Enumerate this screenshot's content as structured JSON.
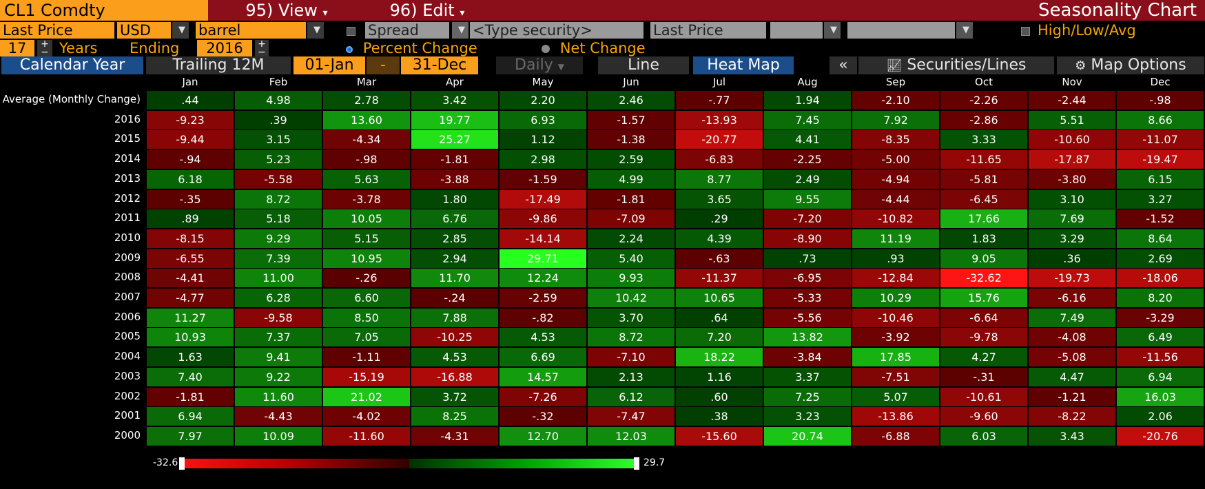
{
  "header": {
    "ticker": "CL1 Comdty",
    "view_menu": "95) View",
    "edit_menu": "96) Edit",
    "title": "Seasonality Chart"
  },
  "controls": {
    "field": "Last Price",
    "currency": "USD",
    "unit": "barrel",
    "spread_label": "Spread",
    "security_placeholder": "<Type security>",
    "second_field": "Last Price",
    "high_low_avg": "High/Low/Avg",
    "years_value": "17",
    "years_label": "Years",
    "ending_label": "Ending",
    "ending_year": "2016",
    "percent_change": "Percent Change",
    "net_change": "Net Change",
    "percent_change_selected": true
  },
  "toolbar": {
    "calendar_year": "Calendar Year",
    "trailing": "Trailing 12M",
    "start_date": "01-Jan",
    "dash": "-",
    "end_date": "31-Dec",
    "daily": "Daily",
    "line": "Line",
    "heat_map": "Heat Map",
    "collapse": "«",
    "securities_lines": "Securities/Lines",
    "map_options": "Map Options"
  },
  "heatmap": {
    "months": [
      "Jan",
      "Feb",
      "Mar",
      "Apr",
      "May",
      "Jun",
      "Jul",
      "Aug",
      "Sep",
      "Oct",
      "Nov",
      "Dec"
    ],
    "rows": [
      {
        "label": "Average (Monthly Change)",
        "values": [
          ".44",
          "4.98",
          "2.78",
          "3.42",
          "2.20",
          "2.46",
          "-.77",
          "1.94",
          "-2.10",
          "-2.26",
          "-2.44",
          "-.98"
        ]
      },
      {
        "label": "2016",
        "values": [
          "-9.23",
          ".39",
          "13.60",
          "19.77",
          "6.93",
          "-1.57",
          "-13.93",
          "7.45",
          "7.92",
          "-2.86",
          "5.51",
          "8.66"
        ]
      },
      {
        "label": "2015",
        "values": [
          "-9.44",
          "3.15",
          "-4.34",
          "25.27",
          "1.12",
          "-1.38",
          "-20.77",
          "4.41",
          "-8.35",
          "3.33",
          "-10.60",
          "-11.07"
        ]
      },
      {
        "label": "2014",
        "values": [
          "-.94",
          "5.23",
          "-.98",
          "-1.81",
          "2.98",
          "2.59",
          "-6.83",
          "-2.25",
          "-5.00",
          "-11.65",
          "-17.87",
          "-19.47"
        ]
      },
      {
        "label": "2013",
        "values": [
          "6.18",
          "-5.58",
          "5.63",
          "-3.88",
          "-1.59",
          "4.99",
          "8.77",
          "2.49",
          "-4.94",
          "-5.81",
          "-3.80",
          "6.15"
        ]
      },
      {
        "label": "2012",
        "values": [
          "-.35",
          "8.72",
          "-3.78",
          "1.80",
          "-17.49",
          "-1.81",
          "3.65",
          "9.55",
          "-4.44",
          "-6.45",
          "3.10",
          "3.27"
        ]
      },
      {
        "label": "2011",
        "values": [
          ".89",
          "5.18",
          "10.05",
          "6.76",
          "-9.86",
          "-7.09",
          ".29",
          "-7.20",
          "-10.82",
          "17.66",
          "7.69",
          "-1.52"
        ]
      },
      {
        "label": "2010",
        "values": [
          "-8.15",
          "9.29",
          "5.15",
          "2.85",
          "-14.14",
          "2.24",
          "4.39",
          "-8.90",
          "11.19",
          "1.83",
          "3.29",
          "8.64"
        ]
      },
      {
        "label": "2009",
        "values": [
          "-6.55",
          "7.39",
          "10.95",
          "2.94",
          "29.71",
          "5.40",
          "-.63",
          ".73",
          ".93",
          "9.05",
          ".36",
          "2.69"
        ]
      },
      {
        "label": "2008",
        "values": [
          "-4.41",
          "11.00",
          "-.26",
          "11.70",
          "12.24",
          "9.93",
          "-11.37",
          "-6.95",
          "-12.84",
          "-32.62",
          "-19.73",
          "-18.06"
        ]
      },
      {
        "label": "2007",
        "values": [
          "-4.77",
          "6.28",
          "6.60",
          "-.24",
          "-2.59",
          "10.42",
          "10.65",
          "-5.33",
          "10.29",
          "15.76",
          "-6.16",
          "8.20"
        ]
      },
      {
        "label": "2006",
        "values": [
          "11.27",
          "-9.58",
          "8.50",
          "7.88",
          "-.82",
          "3.70",
          ".64",
          "-5.56",
          "-10.46",
          "-6.64",
          "7.49",
          "-3.29"
        ]
      },
      {
        "label": "2005",
        "values": [
          "10.93",
          "7.37",
          "7.05",
          "-10.25",
          "4.53",
          "8.72",
          "7.20",
          "13.82",
          "-3.92",
          "-9.78",
          "-4.08",
          "6.49"
        ]
      },
      {
        "label": "2004",
        "values": [
          "1.63",
          "9.41",
          "-1.11",
          "4.53",
          "6.69",
          "-7.10",
          "18.22",
          "-3.84",
          "17.85",
          "4.27",
          "-5.08",
          "-11.56"
        ]
      },
      {
        "label": "2003",
        "values": [
          "7.40",
          "9.22",
          "-15.19",
          "-16.88",
          "14.57",
          "2.13",
          "1.16",
          "3.37",
          "-7.51",
          "-.31",
          "4.47",
          "6.94"
        ]
      },
      {
        "label": "2002",
        "values": [
          "-1.81",
          "11.60",
          "21.02",
          "3.72",
          "-7.26",
          "6.12",
          ".60",
          "7.25",
          "5.07",
          "-10.61",
          "-1.21",
          "16.03"
        ]
      },
      {
        "label": "2001",
        "values": [
          "6.94",
          "-4.43",
          "-4.02",
          "8.25",
          "-.32",
          "-7.47",
          ".38",
          "3.23",
          "-13.86",
          "-9.60",
          "-8.22",
          "2.06"
        ]
      },
      {
        "label": "2000",
        "values": [
          "7.97",
          "10.09",
          "-11.60",
          "-4.31",
          "12.70",
          "12.03",
          "-15.60",
          "20.74",
          "-6.88",
          "6.03",
          "3.43",
          "-20.76"
        ]
      }
    ],
    "legend_min": "-32.6",
    "legend_max": "29.7"
  },
  "colors": {
    "positive_max": "#1cff1c",
    "negative_max": "#ff1a1a",
    "accent_orange": "#fb9e1b",
    "header_maroon": "#8b0f1a"
  }
}
